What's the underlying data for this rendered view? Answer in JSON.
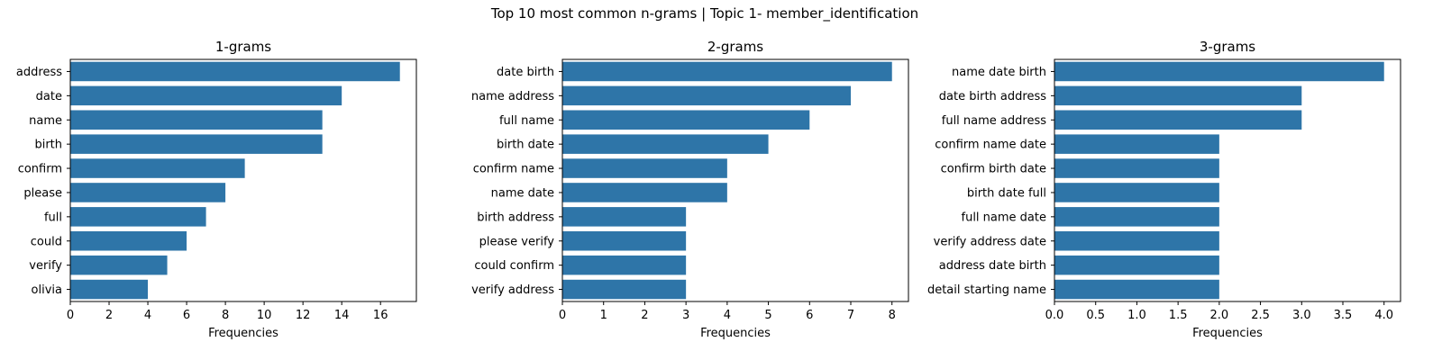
{
  "suptitle": "Top 10 most common n-grams | Topic 1- member_identification",
  "colors": {
    "bar": "#2e75a8",
    "axis": "#000000"
  },
  "chart_data": [
    {
      "type": "bar",
      "orientation": "horizontal",
      "title": "1-grams",
      "xlabel": "Frequencies",
      "ylabel": "",
      "categories": [
        "address",
        "date",
        "name",
        "birth",
        "confirm",
        "please",
        "full",
        "could",
        "verify",
        "olivia"
      ],
      "values": [
        17,
        14,
        13,
        13,
        9,
        8,
        7,
        6,
        5,
        4
      ],
      "xlim": [
        0,
        17.85
      ],
      "xticks": [
        0,
        2,
        4,
        6,
        8,
        10,
        12,
        14,
        16
      ],
      "tick_labels": [
        "0",
        "2",
        "4",
        "6",
        "8",
        "10",
        "12",
        "14",
        "16"
      ],
      "grid": false,
      "legend": "none"
    },
    {
      "type": "bar",
      "orientation": "horizontal",
      "title": "2-grams",
      "xlabel": "Frequencies",
      "ylabel": "",
      "categories": [
        "date birth",
        "name address",
        "full name",
        "birth date",
        "confirm name",
        "name date",
        "birth address",
        "please verify",
        "could confirm",
        "verify address"
      ],
      "values": [
        8,
        7,
        6,
        5,
        4,
        4,
        3,
        3,
        3,
        3
      ],
      "xlim": [
        0,
        8.4
      ],
      "xticks": [
        0,
        1,
        2,
        3,
        4,
        5,
        6,
        7,
        8
      ],
      "tick_labels": [
        "0",
        "1",
        "2",
        "3",
        "4",
        "5",
        "6",
        "7",
        "8"
      ],
      "grid": false,
      "legend": "none"
    },
    {
      "type": "bar",
      "orientation": "horizontal",
      "title": "3-grams",
      "xlabel": "Frequencies",
      "ylabel": "",
      "categories": [
        "name date birth",
        "date birth address",
        "full name address",
        "confirm name date",
        "confirm birth date",
        "birth date full",
        "full name date",
        "verify address date",
        "address date birth",
        "detail starting name"
      ],
      "values": [
        4,
        3,
        3,
        2,
        2,
        2,
        2,
        2,
        2,
        2
      ],
      "xlim": [
        0,
        4.2
      ],
      "xticks": [
        0,
        0.5,
        1,
        1.5,
        2,
        2.5,
        3,
        3.5,
        4
      ],
      "tick_labels": [
        "0.0",
        "0.5",
        "1.0",
        "1.5",
        "2.0",
        "2.5",
        "3.0",
        "3.5",
        "4.0"
      ],
      "grid": false,
      "legend": "none"
    }
  ]
}
